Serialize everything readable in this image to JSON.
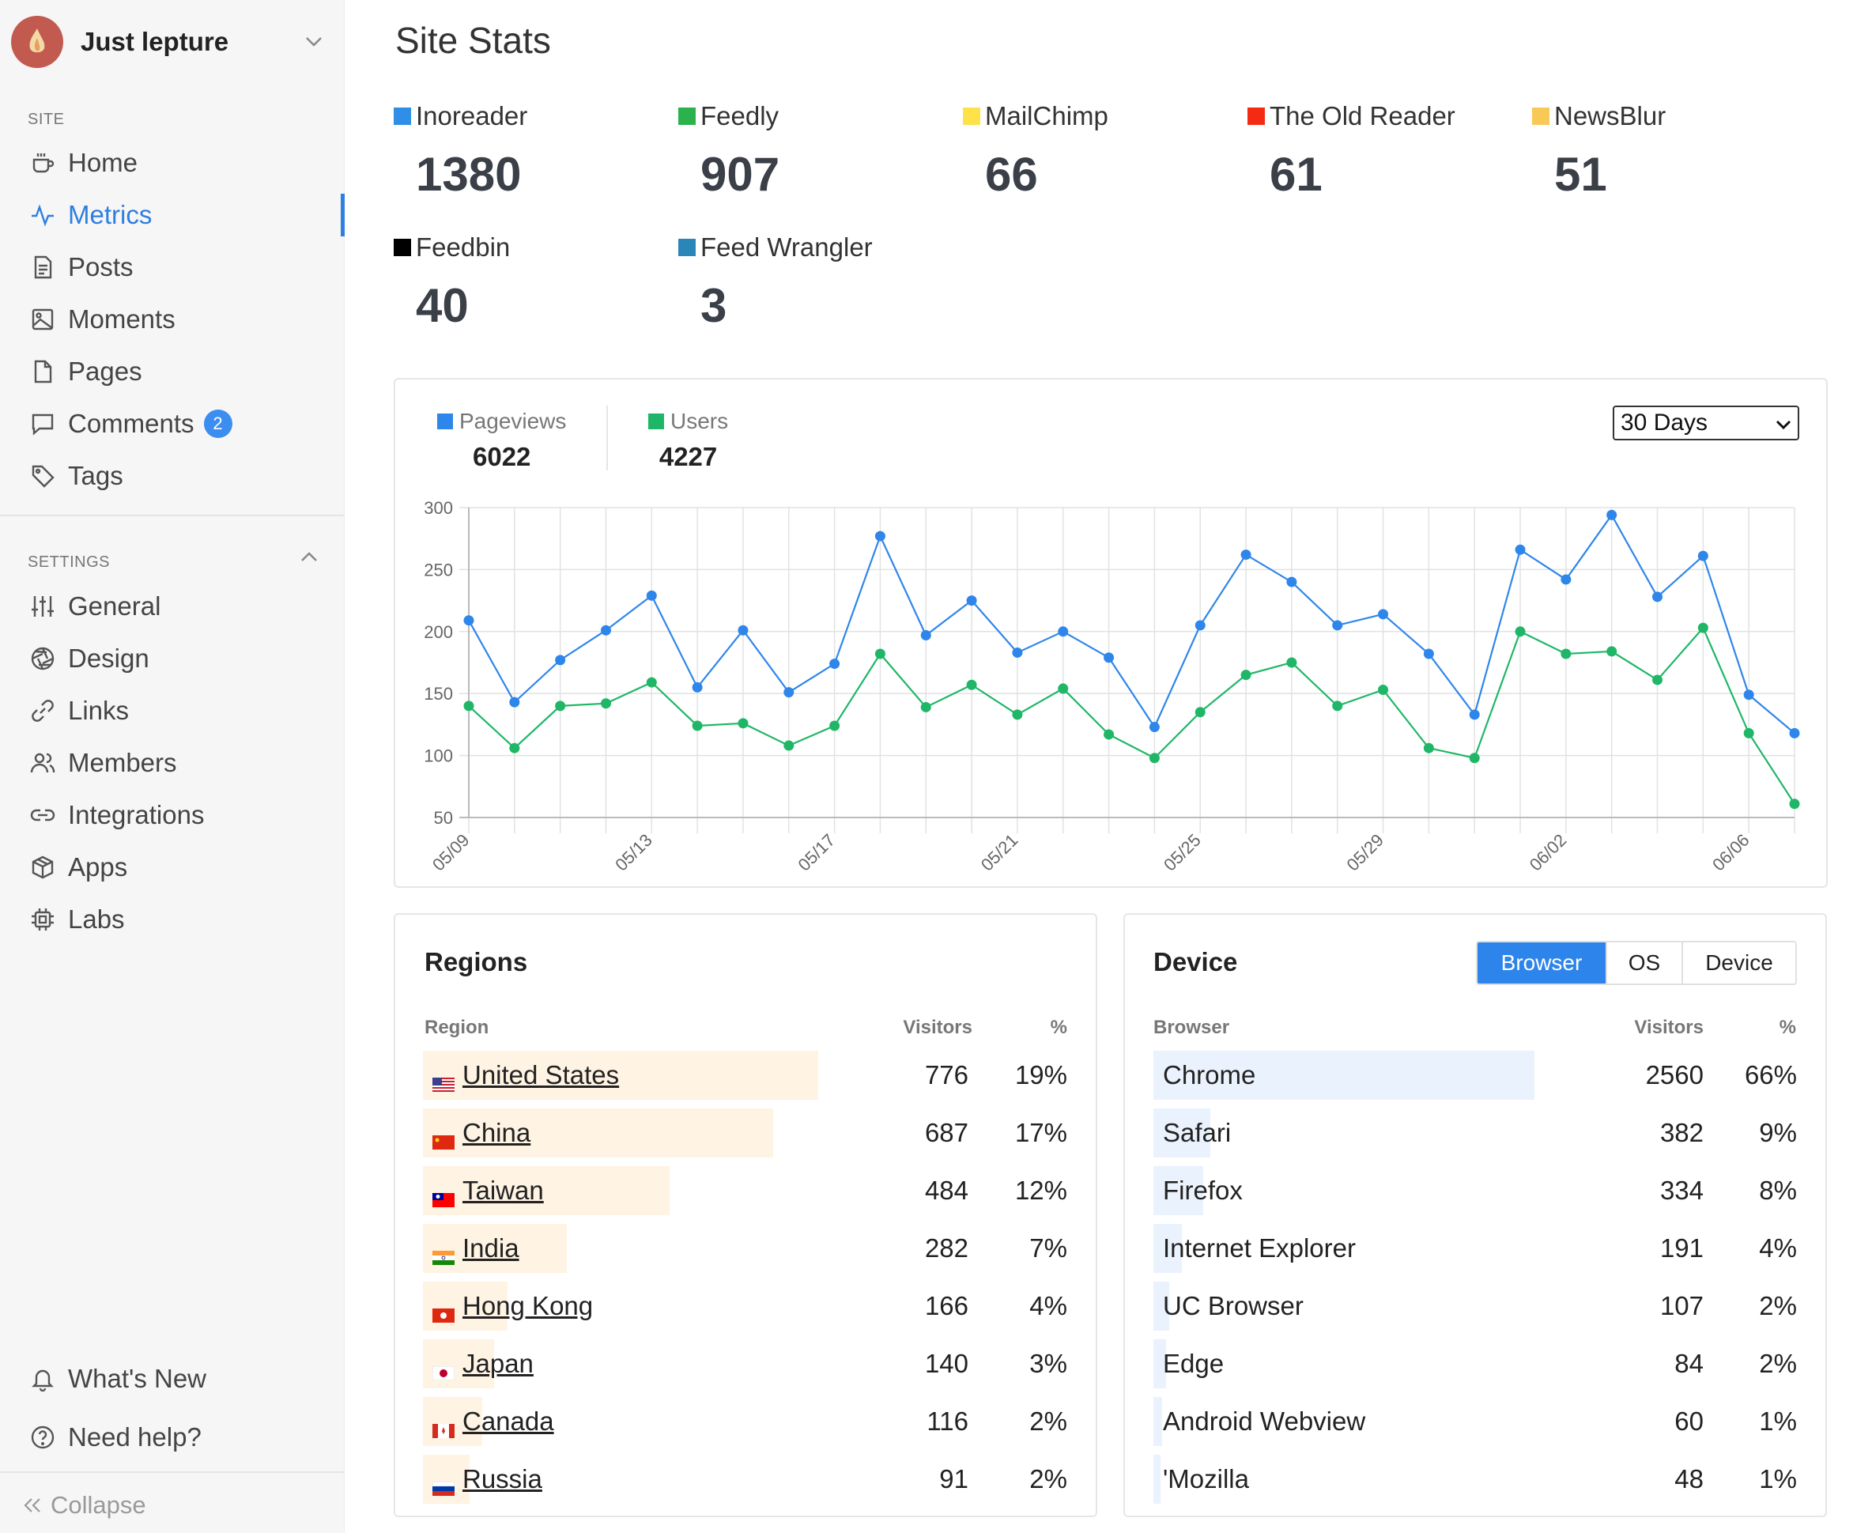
{
  "sidebar": {
    "site_name": "Just lepture",
    "site_section": "SITE",
    "site_items": [
      {
        "label": "Home",
        "icon": "coffee-cup-icon"
      },
      {
        "label": "Metrics",
        "icon": "activity-icon",
        "active": true
      },
      {
        "label": "Posts",
        "icon": "document-icon"
      },
      {
        "label": "Moments",
        "icon": "image-icon"
      },
      {
        "label": "Pages",
        "icon": "page-icon"
      },
      {
        "label": "Comments",
        "icon": "comment-icon",
        "badge": "2"
      },
      {
        "label": "Tags",
        "icon": "tag-icon"
      }
    ],
    "settings_section": "SETTINGS",
    "settings_items": [
      {
        "label": "General",
        "icon": "sliders-icon"
      },
      {
        "label": "Design",
        "icon": "aperture-icon"
      },
      {
        "label": "Links",
        "icon": "link-icon"
      },
      {
        "label": "Members",
        "icon": "users-icon"
      },
      {
        "label": "Integrations",
        "icon": "chain-icon"
      },
      {
        "label": "Apps",
        "icon": "package-icon"
      },
      {
        "label": "Labs",
        "icon": "cpu-icon"
      }
    ],
    "footer_items": [
      {
        "label": "What's New",
        "icon": "bell-icon"
      },
      {
        "label": "Need help?",
        "icon": "help-circle-icon"
      }
    ],
    "collapse_label": "Collapse"
  },
  "main": {
    "title": "Site Stats",
    "readers": [
      {
        "name": "Inoreader",
        "value": "1380",
        "color": "#2f8fe6"
      },
      {
        "name": "Feedly",
        "value": "907",
        "color": "#2bb24c"
      },
      {
        "name": "MailChimp",
        "value": "66",
        "color": "#ffe14a"
      },
      {
        "name": "The Old Reader",
        "value": "61",
        "color": "#f42a12"
      },
      {
        "name": "NewsBlur",
        "value": "51",
        "color": "#f9c958"
      },
      {
        "name": "Feedbin",
        "value": "40",
        "color": "#000000"
      },
      {
        "name": "Feed Wrangler",
        "value": "3",
        "color": "#2a86b8"
      }
    ]
  },
  "traffic": {
    "pageviews_label": "Pageviews",
    "pageviews_total": "6022",
    "users_label": "Users",
    "users_total": "4227",
    "range_selected": "30 Days",
    "pageviews_color": "#2f86ea",
    "users_color": "#1fb767"
  },
  "chart_data": {
    "type": "line",
    "x": [
      "05/09",
      "05/10",
      "05/11",
      "05/12",
      "05/13",
      "05/14",
      "05/15",
      "05/16",
      "05/17",
      "05/18",
      "05/19",
      "05/20",
      "05/21",
      "05/22",
      "05/23",
      "05/24",
      "05/25",
      "05/26",
      "05/27",
      "05/28",
      "05/29",
      "05/30",
      "05/31",
      "06/01",
      "06/02",
      "06/03",
      "06/04",
      "06/05",
      "06/06",
      "06/07"
    ],
    "x_tick_labels": [
      "05/09",
      "05/13",
      "05/17",
      "05/21",
      "05/25",
      "05/29",
      "06/02",
      "06/06"
    ],
    "x_tick_every": 4,
    "series": [
      {
        "name": "Pageviews",
        "color": "#2f86ea",
        "values": [
          209,
          143,
          177,
          201,
          229,
          155,
          201,
          151,
          174,
          277,
          197,
          225,
          183,
          200,
          179,
          123,
          205,
          262,
          240,
          205,
          214,
          182,
          133,
          266,
          242,
          294,
          228,
          261,
          149,
          118
        ]
      },
      {
        "name": "Users",
        "color": "#1fb767",
        "values": [
          140,
          106,
          140,
          142,
          159,
          124,
          126,
          108,
          124,
          182,
          139,
          157,
          133,
          154,
          117,
          98,
          135,
          165,
          175,
          140,
          153,
          106,
          98,
          200,
          182,
          184,
          161,
          203,
          118,
          61
        ]
      }
    ],
    "ylim": [
      50,
      300
    ],
    "yticks": [
      50,
      100,
      150,
      200,
      250,
      300
    ],
    "grid": true
  },
  "regions": {
    "title": "Regions",
    "col_region": "Region",
    "col_visitors": "Visitors",
    "col_percent": "%",
    "bar_color": "#fff3e3",
    "max_visitors": 776,
    "rows": [
      {
        "name": "United States",
        "visitors": "776",
        "percent": "19%",
        "value": 776,
        "flag": "us-flag-icon"
      },
      {
        "name": "China",
        "visitors": "687",
        "percent": "17%",
        "value": 687,
        "flag": "cn-flag-icon"
      },
      {
        "name": "Taiwan",
        "visitors": "484",
        "percent": "12%",
        "value": 484,
        "flag": "tw-flag-icon"
      },
      {
        "name": "India",
        "visitors": "282",
        "percent": "7%",
        "value": 282,
        "flag": "in-flag-icon"
      },
      {
        "name": "Hong Kong",
        "visitors": "166",
        "percent": "4%",
        "value": 166,
        "flag": "hk-flag-icon"
      },
      {
        "name": "Japan",
        "visitors": "140",
        "percent": "3%",
        "value": 140,
        "flag": "jp-flag-icon"
      },
      {
        "name": "Canada",
        "visitors": "116",
        "percent": "2%",
        "value": 116,
        "flag": "ca-flag-icon"
      },
      {
        "name": "Russia",
        "visitors": "91",
        "percent": "2%",
        "value": 91,
        "flag": "ru-flag-icon"
      }
    ]
  },
  "device": {
    "title": "Device",
    "tabs": [
      "Browser",
      "OS",
      "Device"
    ],
    "active_tab": "Browser",
    "col_browser": "Browser",
    "col_visitors": "Visitors",
    "col_percent": "%",
    "bar_color": "#eaf2fd",
    "max_visitors": 2560,
    "rows": [
      {
        "name": "Chrome",
        "visitors": "2560",
        "percent": "66%",
        "value": 2560
      },
      {
        "name": "Safari",
        "visitors": "382",
        "percent": "9%",
        "value": 382
      },
      {
        "name": "Firefox",
        "visitors": "334",
        "percent": "8%",
        "value": 334
      },
      {
        "name": "Internet Explorer",
        "visitors": "191",
        "percent": "4%",
        "value": 191
      },
      {
        "name": "UC Browser",
        "visitors": "107",
        "percent": "2%",
        "value": 107
      },
      {
        "name": "Edge",
        "visitors": "84",
        "percent": "2%",
        "value": 84
      },
      {
        "name": "Android Webview",
        "visitors": "60",
        "percent": "1%",
        "value": 60
      },
      {
        "name": "'Mozilla",
        "visitors": "48",
        "percent": "1%",
        "value": 48
      }
    ]
  }
}
